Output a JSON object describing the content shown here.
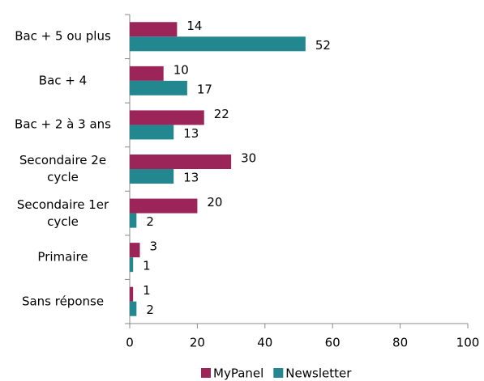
{
  "chart_data": {
    "type": "hbar",
    "categories": [
      "Bac + 5 ou plus",
      "Bac + 4",
      "Bac + 2 à 3 ans",
      "Secondaire 2e cycle",
      "Secondaire 1er cycle",
      "Primaire",
      "Sans réponse"
    ],
    "series": [
      {
        "name": "MyPanel",
        "color": "#9b2458",
        "values": [
          14,
          10,
          22,
          30,
          20,
          3,
          1
        ]
      },
      {
        "name": "Newsletter",
        "color": "#23878f",
        "values": [
          52,
          17,
          13,
          13,
          2,
          1,
          2
        ]
      }
    ],
    "xlim": [
      0,
      100
    ],
    "xticks": [
      0,
      20,
      40,
      60,
      80,
      100
    ],
    "grid": false,
    "legend": "bottom"
  }
}
